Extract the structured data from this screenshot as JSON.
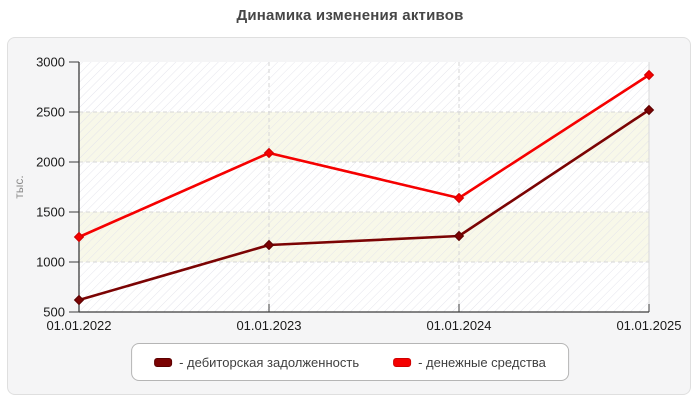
{
  "title": "Динамика изменения активов",
  "chart_data": {
    "type": "line",
    "title": "Динамика изменения активов",
    "ylabel": "тыс.",
    "x": [
      "01.01.2022",
      "01.01.2023",
      "01.01.2024",
      "01.01.2025"
    ],
    "series": [
      {
        "name": "дебиторская задолженность",
        "legend_label": "- дебиторская задолженность",
        "color": "#7b0303",
        "marker_color": "#5c0101",
        "values": [
          620,
          1170,
          1260,
          2520
        ]
      },
      {
        "name": "денежные средства",
        "legend_label": "- денежные средства",
        "color": "#f50000",
        "marker_color": "#cf0000",
        "values": [
          1250,
          2090,
          1640,
          2870
        ]
      }
    ],
    "ylim": [
      500,
      3000
    ],
    "yticks": [
      500,
      1000,
      1500,
      2000,
      2500,
      3000
    ],
    "grid": "dashed",
    "marker": "diamond",
    "legend_position": "bottom",
    "style": {
      "band_cream": "#f8f8e9",
      "band_white": "#ffffff",
      "hatch_color": "#e2e2ea",
      "grid_color": "#d6d6d6",
      "right_edge_color": "#d9d9d9",
      "axis_color": "#3c3c3c",
      "tick_label_color": "#1a1a1a",
      "panel_bg": "#f5f5f6",
      "panel_border": "#dfdfdf",
      "title_color": "#464646",
      "ylabel_color": "#8a8a8a",
      "legend_bg": "#ffffff",
      "legend_border": "#b5b5b5",
      "legend_text_color": "#3f3f3f"
    }
  }
}
